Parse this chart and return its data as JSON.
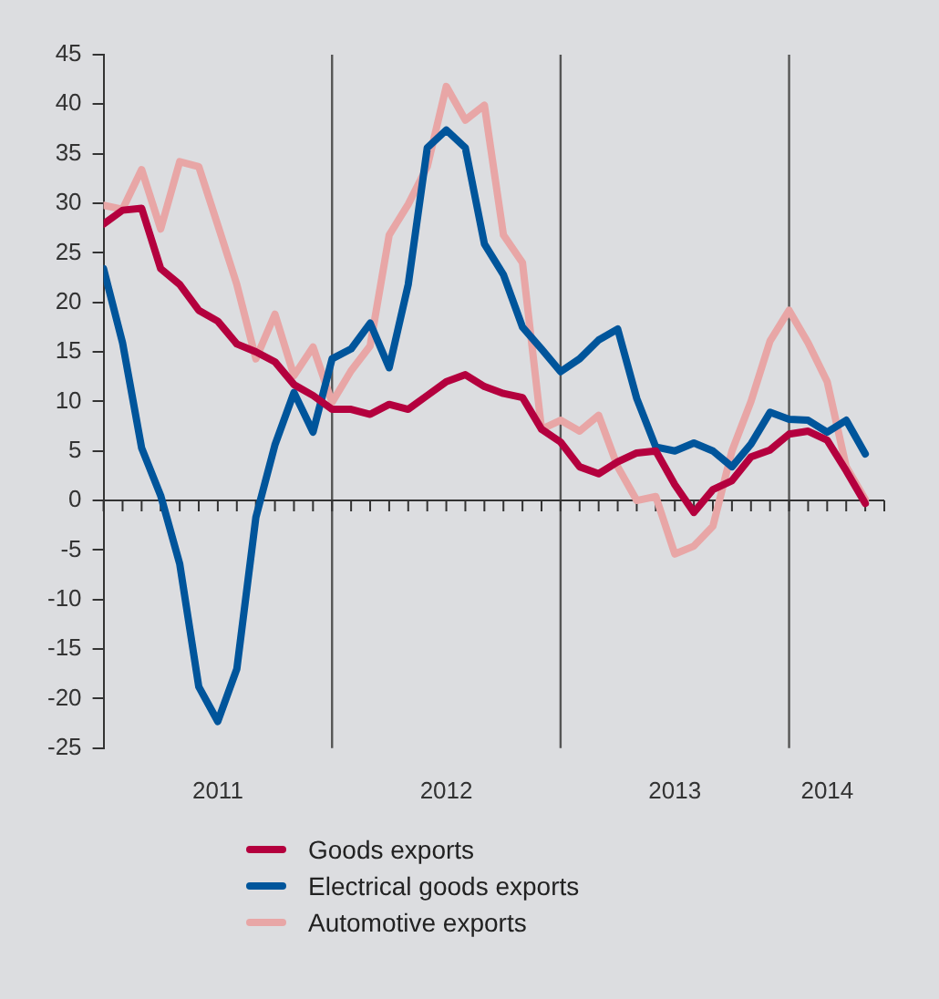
{
  "chart_data": {
    "type": "line",
    "legend": "bottom",
    "marker": "none",
    "x": [
      "2011-01",
      "2011-02",
      "2011-03",
      "2011-04",
      "2011-05",
      "2011-06",
      "2011-07",
      "2011-08",
      "2011-09",
      "2011-10",
      "2011-11",
      "2011-12",
      "2012-01",
      "2012-02",
      "2012-03",
      "2012-04",
      "2012-05",
      "2012-06",
      "2012-07",
      "2012-08",
      "2012-09",
      "2012-10",
      "2012-11",
      "2012-12",
      "2013-01",
      "2013-02",
      "2013-03",
      "2013-04",
      "2013-05",
      "2013-06",
      "2013-07",
      "2013-08",
      "2013-09",
      "2013-10",
      "2013-11",
      "2013-12",
      "2014-01",
      "2014-02",
      "2014-03",
      "2014-04",
      "2014-05"
    ],
    "xlim": [
      "2011-01",
      "2014-06"
    ],
    "xticks": [
      {
        "value": "2011-01",
        "label": null
      },
      {
        "value": "2011-02",
        "label": null
      },
      {
        "value": "2011-03",
        "label": null
      },
      {
        "value": "2011-04",
        "label": null
      },
      {
        "value": "2011-05",
        "label": null
      },
      {
        "value": "2011-06",
        "label": null
      },
      {
        "value": "2011-07",
        "label": "2011"
      },
      {
        "value": "2011-08",
        "label": null
      },
      {
        "value": "2011-09",
        "label": null
      },
      {
        "value": "2011-10",
        "label": null
      },
      {
        "value": "2011-11",
        "label": null
      },
      {
        "value": "2011-12",
        "label": null
      },
      {
        "value": "2012-01",
        "label": null
      },
      {
        "value": "2012-02",
        "label": null
      },
      {
        "value": "2012-03",
        "label": null
      },
      {
        "value": "2012-04",
        "label": null
      },
      {
        "value": "2012-05",
        "label": null
      },
      {
        "value": "2012-06",
        "label": null
      },
      {
        "value": "2012-07",
        "label": "2012"
      },
      {
        "value": "2012-08",
        "label": null
      },
      {
        "value": "2012-09",
        "label": null
      },
      {
        "value": "2012-10",
        "label": null
      },
      {
        "value": "2012-11",
        "label": null
      },
      {
        "value": "2012-12",
        "label": null
      },
      {
        "value": "2013-01",
        "label": null
      },
      {
        "value": "2013-02",
        "label": null
      },
      {
        "value": "2013-03",
        "label": null
      },
      {
        "value": "2013-04",
        "label": null
      },
      {
        "value": "2013-05",
        "label": null
      },
      {
        "value": "2013-06",
        "label": null
      },
      {
        "value": "2013-07",
        "label": "2013"
      },
      {
        "value": "2013-08",
        "label": null
      },
      {
        "value": "2013-09",
        "label": null
      },
      {
        "value": "2013-10",
        "label": null
      },
      {
        "value": "2013-11",
        "label": null
      },
      {
        "value": "2013-12",
        "label": null
      },
      {
        "value": "2014-01",
        "label": null
      },
      {
        "value": "2014-02",
        "label": null
      },
      {
        "value": "2014-03",
        "label": "2014"
      },
      {
        "value": "2014-04",
        "label": null
      },
      {
        "value": "2014-05",
        "label": null
      },
      {
        "value": "2014-06",
        "label": null
      }
    ],
    "ylim": [
      -25,
      45
    ],
    "yticks": [
      -25,
      -20,
      -15,
      -10,
      -5,
      0,
      5,
      10,
      15,
      20,
      25,
      30,
      35,
      40,
      45
    ],
    "ref_lines": [
      {
        "axis": "x",
        "value": "2012-01",
        "color": "#555555"
      },
      {
        "axis": "x",
        "value": "2013-01",
        "color": "#555555"
      },
      {
        "axis": "x",
        "value": "2014-01",
        "color": "#555555"
      }
    ],
    "series": [
      {
        "name": "Goods exports",
        "color": "#b4003e",
        "values": [
          27.9,
          29.3,
          29.5,
          23.4,
          21.8,
          19.2,
          18.1,
          15.8,
          15.0,
          14.0,
          11.7,
          10.6,
          9.2,
          9.2,
          8.7,
          9.7,
          9.2,
          10.6,
          12.0,
          12.7,
          11.5,
          10.8,
          10.4,
          7.2,
          5.9,
          3.4,
          2.7,
          3.9,
          4.8,
          5.0,
          1.6,
          -1.2,
          1.1,
          2.0,
          4.4,
          5.1,
          6.7,
          7.0,
          6.1,
          3.0,
          -0.3
        ]
      },
      {
        "name": "Electrical goods exports",
        "color": "#00559b",
        "values": [
          23.4,
          15.9,
          5.3,
          0.5,
          -6.4,
          -18.8,
          -22.3,
          -17.0,
          -1.7,
          5.6,
          10.9,
          6.9,
          14.3,
          15.3,
          17.9,
          13.4,
          21.8,
          35.6,
          37.4,
          35.6,
          25.9,
          22.8,
          17.5,
          15.3,
          13.0,
          14.3,
          16.2,
          17.3,
          10.3,
          5.4,
          5.0,
          5.8,
          5.0,
          3.4,
          5.7,
          8.9,
          8.2,
          8.1,
          6.9,
          8.1,
          4.7
        ]
      },
      {
        "name": "Automotive exports",
        "color": "#e8a6a6",
        "values": [
          29.8,
          29.4,
          33.4,
          27.4,
          34.2,
          33.7,
          27.8,
          21.8,
          14.3,
          18.8,
          12.6,
          15.5,
          9.9,
          13.1,
          15.6,
          26.8,
          29.9,
          33.7,
          41.8,
          38.4,
          39.9,
          26.8,
          24.0,
          7.2,
          8.1,
          7.0,
          8.6,
          3.4,
          0.0,
          0.4,
          -5.4,
          -4.6,
          -2.6,
          5.0,
          10.0,
          16.1,
          19.2,
          15.9,
          12.0,
          3.4,
          0.1
        ]
      }
    ]
  }
}
